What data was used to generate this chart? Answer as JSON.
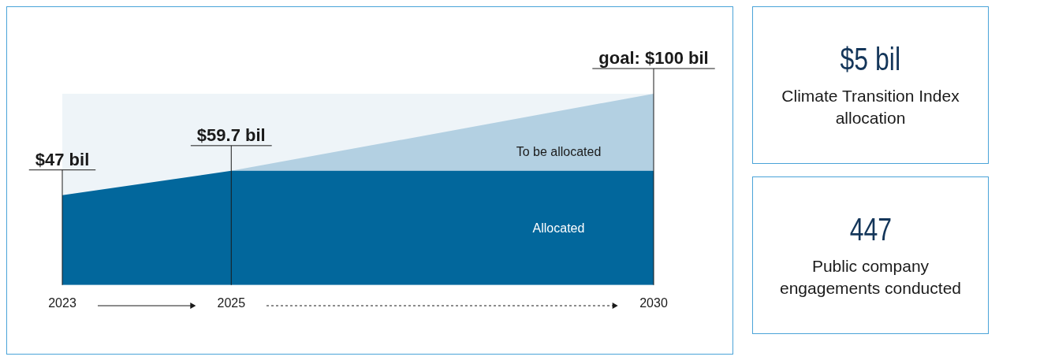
{
  "chart_data": [
    {
      "type": "area",
      "x": [
        2023,
        2025,
        2030
      ],
      "xlim": [
        2023,
        2030
      ],
      "xticks": [
        2023,
        2025,
        2030
      ],
      "tick_labels": "x",
      "grid": "x",
      "legend": false,
      "series": [
        {
          "name": "Allocated",
          "color": "#02679c",
          "values": [
            47,
            59.7,
            59.7
          ],
          "value_labels": [
            "$47 bil",
            "$59.7 bil",
            null
          ]
        },
        {
          "name": "To be allocated",
          "color": "#b3d0e2",
          "values": [
            null,
            59.7,
            100
          ],
          "value_labels": [
            null,
            null,
            "goal: $100 bil"
          ]
        }
      ],
      "bands": [
        {
          "axis": "x",
          "from": 2023,
          "to": 2030,
          "color": "#eef4f8"
        }
      ]
    },
    {
      "type": "other",
      "title": "$5 bil",
      "subtitle": "Climate Transition Index allocation"
    },
    {
      "type": "other",
      "title": "447",
      "subtitle": "Public company engagements conducted"
    }
  ]
}
